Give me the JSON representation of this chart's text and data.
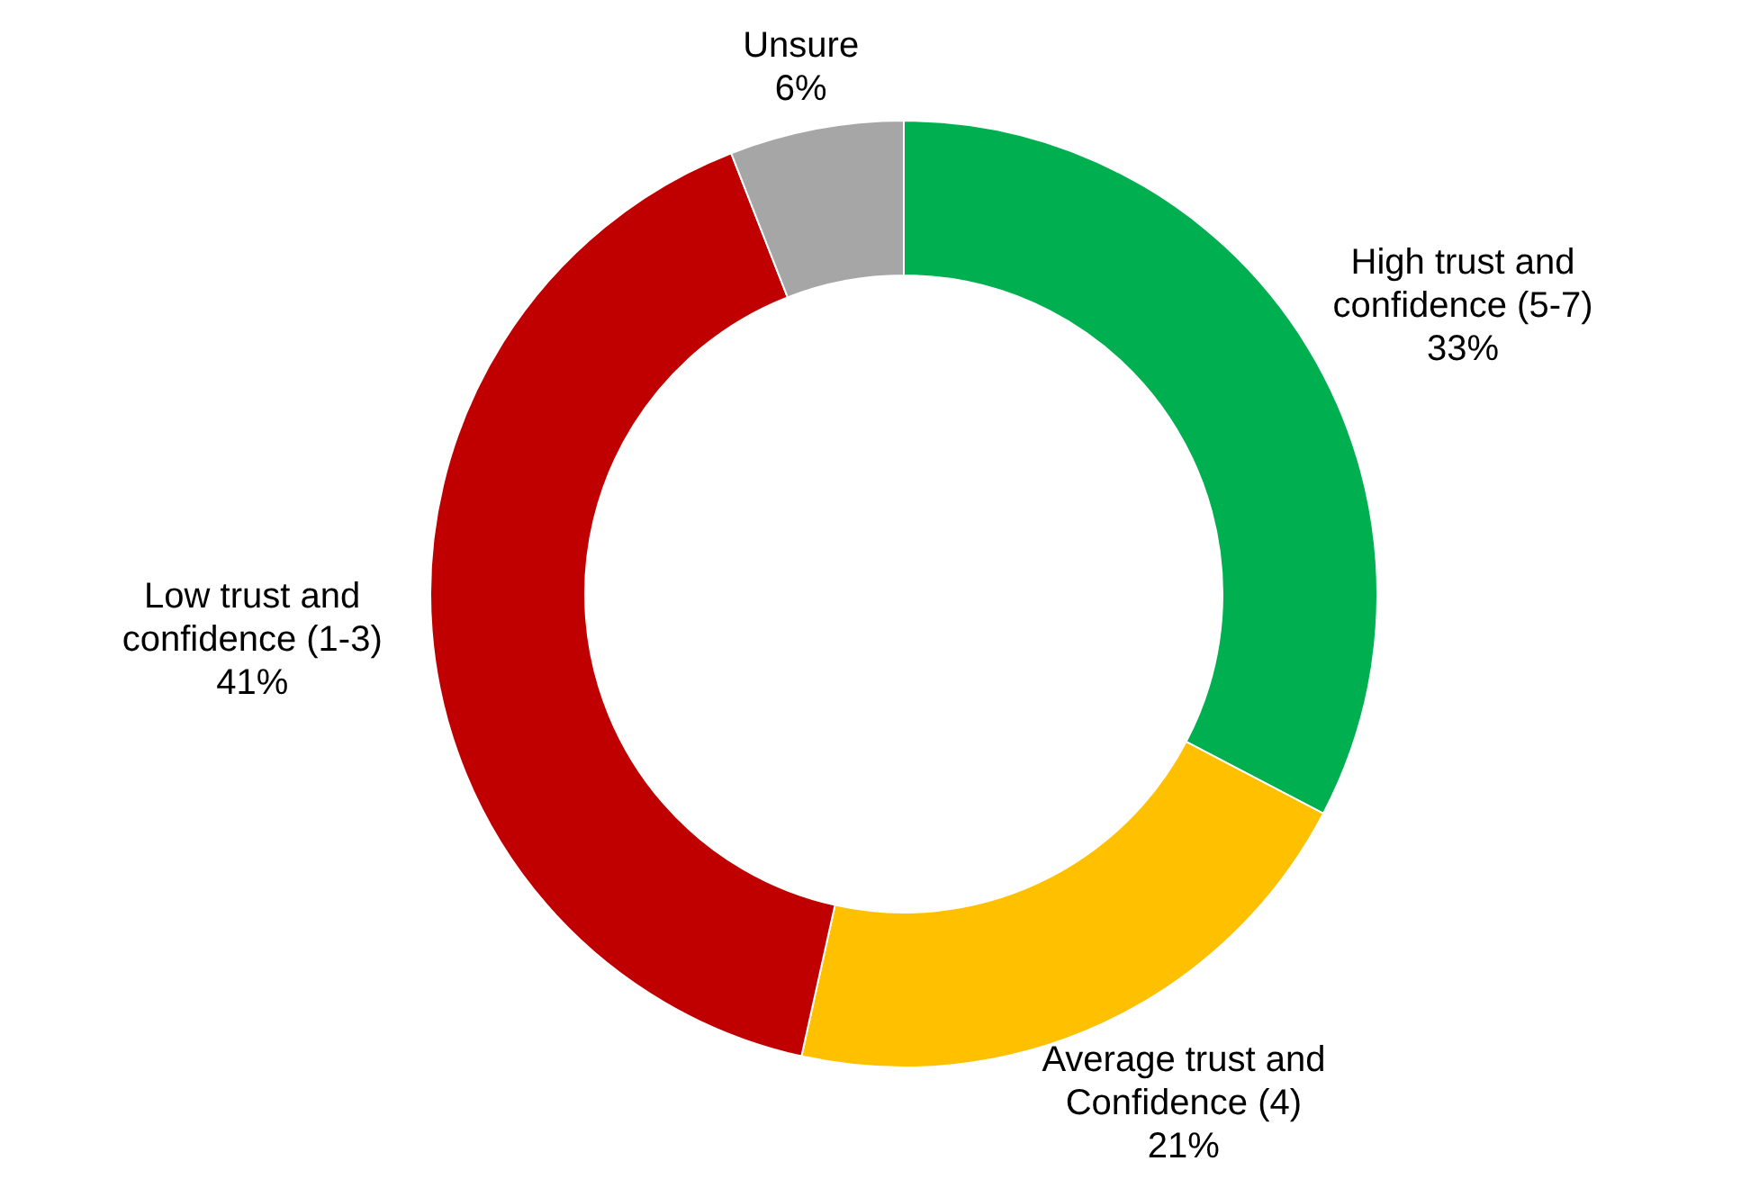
{
  "chart_data": {
    "type": "donut",
    "categories": [
      "High trust and confidence (5-7)",
      "Average trust and Confidence (4)",
      "Low trust and confidence (1-3)",
      "Unsure"
    ],
    "values": [
      33,
      21,
      41,
      6
    ],
    "colors": [
      "#00b050",
      "#ffc000",
      "#c00000",
      "#a6a6a6"
    ],
    "value_labels": [
      "33%",
      "21%",
      "41%",
      "6%"
    ]
  }
}
